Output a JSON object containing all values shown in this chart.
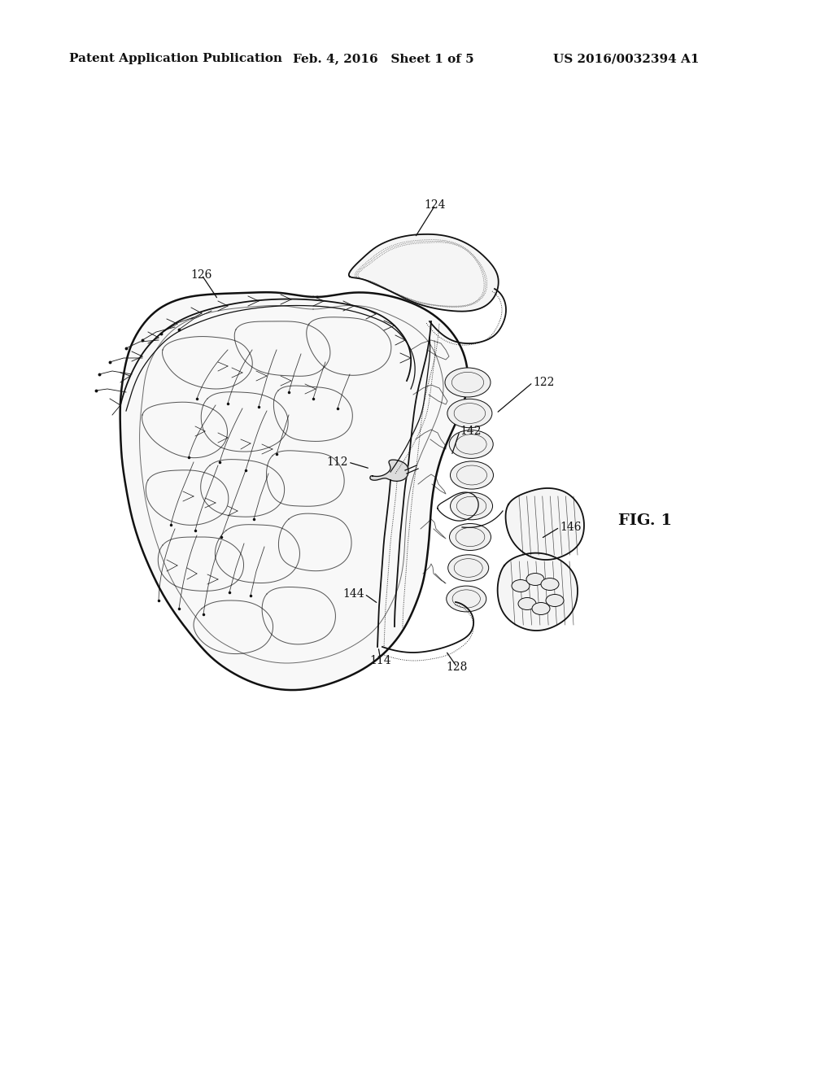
{
  "background_color": "#ffffff",
  "header_left": "Patent Application Publication",
  "header_center": "Feb. 4, 2016   Sheet 1 of 5",
  "header_right": "US 2016/0032394 A1",
  "fig_label": "FIG. 1",
  "header_fontsize": 11,
  "label_fontsize": 10,
  "fig_label_fontsize": 14
}
